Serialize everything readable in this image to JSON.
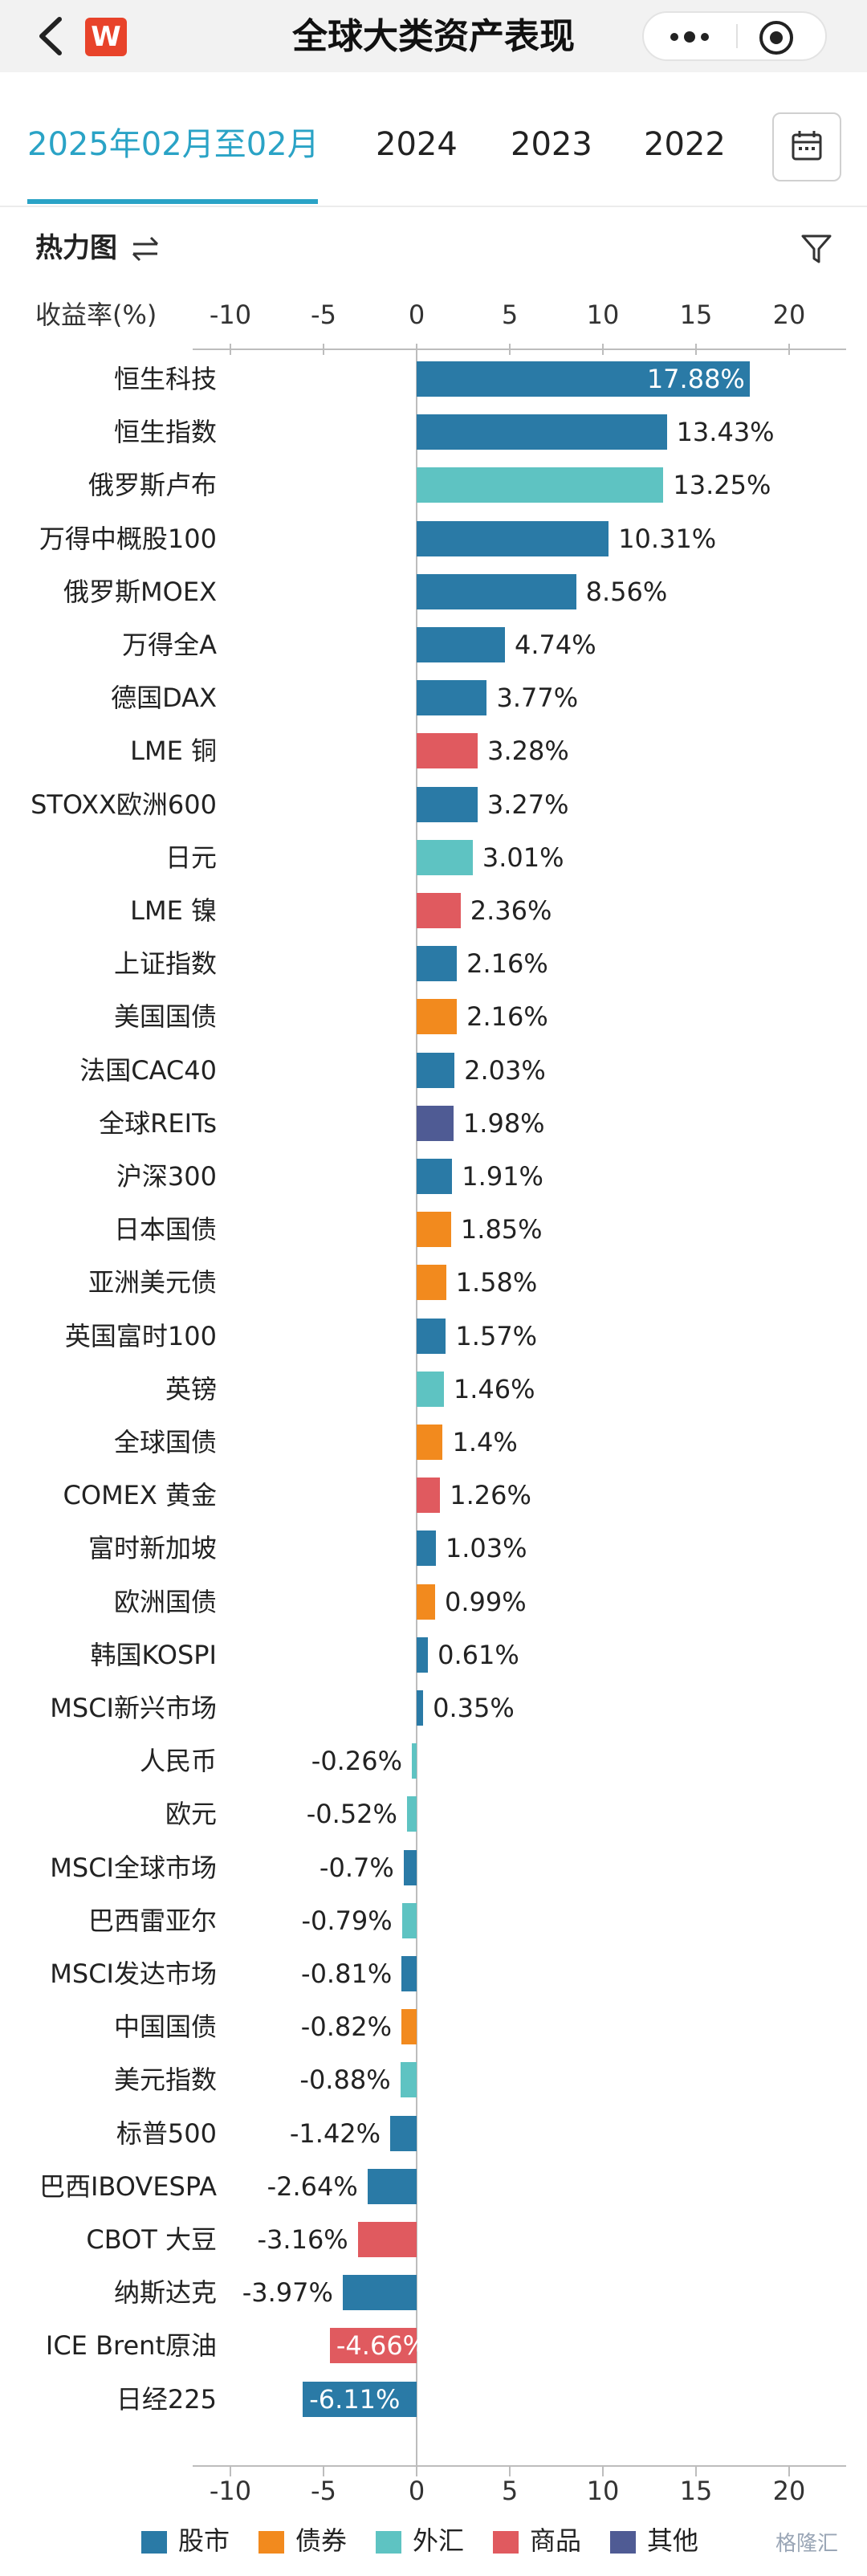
{
  "header": {
    "title": "全球大类资产表现",
    "logo_text": "W",
    "icons": [
      "back-arrow-icon",
      "more-dots-icon",
      "target-icon"
    ]
  },
  "tabs": [
    {
      "label": "2025年02月至02月",
      "active": true
    },
    {
      "label": "2024",
      "active": false
    },
    {
      "label": "2023",
      "active": false
    },
    {
      "label": "2022",
      "active": false
    }
  ],
  "section": {
    "title": "热力图",
    "icons": [
      "swap-icon",
      "filter-icon",
      "calendar-icon"
    ]
  },
  "colors": {
    "股市": "#2a7aa6",
    "债券": "#f28a1e",
    "外汇": "#5ec3c2",
    "商品": "#e05a5f",
    "其他": "#4f5b94",
    "accent": "#2aa3c6"
  },
  "chart_data": {
    "type": "bar",
    "orientation": "horizontal",
    "xlabel": "收益率(%)",
    "xlim": [
      -10,
      20
    ],
    "ticks": [
      -10,
      -5,
      0,
      5,
      10,
      15,
      20
    ],
    "legend_position": "bottom",
    "legend": [
      "股市",
      "债券",
      "外汇",
      "商品",
      "其他"
    ],
    "items": [
      {
        "name": "恒生科技",
        "value": 17.88,
        "label": "17.88%",
        "category": "股市"
      },
      {
        "name": "恒生指数",
        "value": 13.43,
        "label": "13.43%",
        "category": "股市"
      },
      {
        "name": "俄罗斯卢布",
        "value": 13.25,
        "label": "13.25%",
        "category": "外汇"
      },
      {
        "name": "万得中概股100",
        "value": 10.31,
        "label": "10.31%",
        "category": "股市"
      },
      {
        "name": "俄罗斯MOEX",
        "value": 8.56,
        "label": "8.56%",
        "category": "股市"
      },
      {
        "name": "万得全A",
        "value": 4.74,
        "label": "4.74%",
        "category": "股市"
      },
      {
        "name": "德国DAX",
        "value": 3.77,
        "label": "3.77%",
        "category": "股市"
      },
      {
        "name": "LME 铜",
        "value": 3.28,
        "label": "3.28%",
        "category": "商品"
      },
      {
        "name": "STOXX欧洲600",
        "value": 3.27,
        "label": "3.27%",
        "category": "股市"
      },
      {
        "name": "日元",
        "value": 3.01,
        "label": "3.01%",
        "category": "外汇"
      },
      {
        "name": "LME 镍",
        "value": 2.36,
        "label": "2.36%",
        "category": "商品"
      },
      {
        "name": "上证指数",
        "value": 2.16,
        "label": "2.16%",
        "category": "股市"
      },
      {
        "name": "美国国债",
        "value": 2.16,
        "label": "2.16%",
        "category": "债券"
      },
      {
        "name": "法国CAC40",
        "value": 2.03,
        "label": "2.03%",
        "category": "股市"
      },
      {
        "name": "全球REITs",
        "value": 1.98,
        "label": "1.98%",
        "category": "其他"
      },
      {
        "name": "沪深300",
        "value": 1.91,
        "label": "1.91%",
        "category": "股市"
      },
      {
        "name": "日本国债",
        "value": 1.85,
        "label": "1.85%",
        "category": "债券"
      },
      {
        "name": "亚洲美元债",
        "value": 1.58,
        "label": "1.58%",
        "category": "债券"
      },
      {
        "name": "英国富时100",
        "value": 1.57,
        "label": "1.57%",
        "category": "股市"
      },
      {
        "name": "英镑",
        "value": 1.46,
        "label": "1.46%",
        "category": "外汇"
      },
      {
        "name": "全球国债",
        "value": 1.4,
        "label": "1.4%",
        "category": "债券"
      },
      {
        "name": "COMEX 黄金",
        "value": 1.26,
        "label": "1.26%",
        "category": "商品"
      },
      {
        "name": "富时新加坡",
        "value": 1.03,
        "label": "1.03%",
        "category": "股市"
      },
      {
        "name": "欧洲国债",
        "value": 0.99,
        "label": "0.99%",
        "category": "债券"
      },
      {
        "name": "韩国KOSPI",
        "value": 0.61,
        "label": "0.61%",
        "category": "股市"
      },
      {
        "name": "MSCI新兴市场",
        "value": 0.35,
        "label": "0.35%",
        "category": "股市"
      },
      {
        "name": "人民币",
        "value": -0.26,
        "label": "-0.26%",
        "category": "外汇"
      },
      {
        "name": "欧元",
        "value": -0.52,
        "label": "-0.52%",
        "category": "外汇"
      },
      {
        "name": "MSCI全球市场",
        "value": -0.7,
        "label": "-0.7%",
        "category": "股市"
      },
      {
        "name": "巴西雷亚尔",
        "value": -0.79,
        "label": "-0.79%",
        "category": "外汇"
      },
      {
        "name": "MSCI发达市场",
        "value": -0.81,
        "label": "-0.81%",
        "category": "股市"
      },
      {
        "name": "中国国债",
        "value": -0.82,
        "label": "-0.82%",
        "category": "债券"
      },
      {
        "name": "美元指数",
        "value": -0.88,
        "label": "-0.88%",
        "category": "外汇"
      },
      {
        "name": "标普500",
        "value": -1.42,
        "label": "-1.42%",
        "category": "股市"
      },
      {
        "name": "巴西IBOVESPA",
        "value": -2.64,
        "label": "-2.64%",
        "category": "股市"
      },
      {
        "name": "CBOT 大豆",
        "value": -3.16,
        "label": "-3.16%",
        "category": "商品"
      },
      {
        "name": "纳斯达克",
        "value": -3.97,
        "label": "-3.97%",
        "category": "股市"
      },
      {
        "name": "ICE Brent原油",
        "value": -4.66,
        "label": "-4.66%",
        "category": "商品"
      },
      {
        "name": "日经225",
        "value": -6.11,
        "label": "-6.11%",
        "category": "股市"
      }
    ]
  },
  "watermark": "格隆汇"
}
